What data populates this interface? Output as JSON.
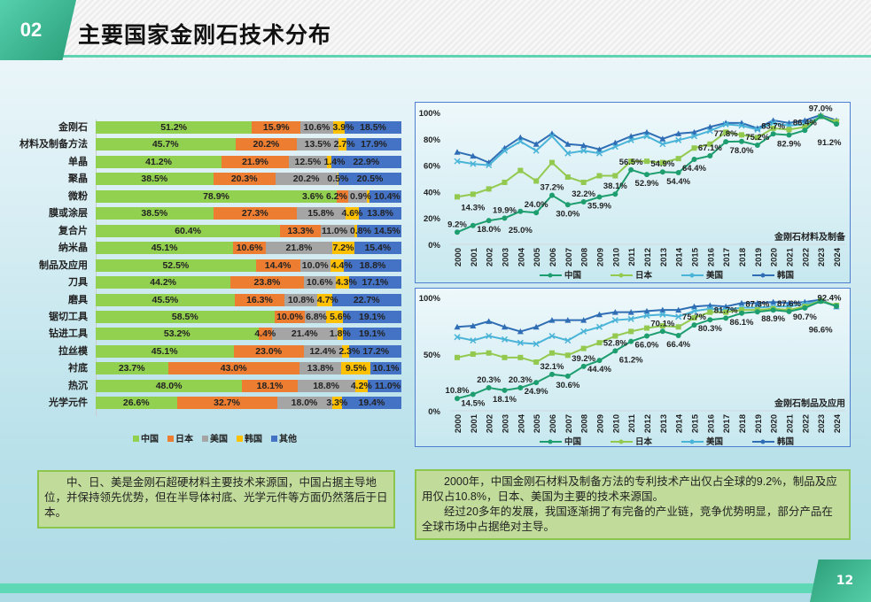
{
  "header": {
    "number": "02",
    "title": "主要国家金刚石技术分布"
  },
  "colors": {
    "中国": "#92d050",
    "日本": "#ed7d31",
    "美国": "#a5a5a5",
    "韩国": "#ffc000",
    "其他": "#4472c4"
  },
  "chart_data": [
    {
      "type": "bar",
      "stacked": true,
      "orientation": "horizontal",
      "legend_position": "bottom",
      "categories": [
        "金刚石",
        "材料及制备方法",
        "单晶",
        "聚晶",
        "微粉",
        "膜或涂层",
        "复合片",
        "纳米晶",
        "制品及应用",
        "刀具",
        "磨具",
        "锯切工具",
        "钻进工具",
        "拉丝模",
        "衬底",
        "热沉",
        "光学元件"
      ],
      "series": [
        {
          "name": "中国",
          "values": [
            51.2,
            45.7,
            41.2,
            38.5,
            78.9,
            38.5,
            60.4,
            45.1,
            52.5,
            44.2,
            45.5,
            58.5,
            53.2,
            45.1,
            23.7,
            48.0,
            26.6
          ]
        },
        {
          "name": "日本",
          "values": [
            15.9,
            20.2,
            21.9,
            20.3,
            3.6,
            27.3,
            13.3,
            10.6,
            14.4,
            23.8,
            16.3,
            10.0,
            4.4,
            23.0,
            43.0,
            18.1,
            32.7
          ]
        },
        {
          "name": "美国",
          "values": [
            10.6,
            13.5,
            12.5,
            20.2,
            6.2,
            15.8,
            11.0,
            21.8,
            10.0,
            10.6,
            10.8,
            6.8,
            21.4,
            12.4,
            13.8,
            18.8,
            18.0
          ]
        },
        {
          "name": "韩国",
          "values": [
            3.9,
            2.7,
            1.4,
            0.5,
            0.9,
            4.6,
            0.8,
            7.2,
            4.4,
            4.3,
            4.7,
            5.6,
            1.8,
            2.3,
            9.5,
            4.2,
            3.3
          ]
        },
        {
          "name": "其他",
          "values": [
            18.5,
            17.9,
            22.9,
            20.5,
            10.4,
            13.8,
            14.5,
            15.4,
            18.8,
            17.1,
            22.7,
            19.1,
            19.1,
            17.2,
            10.1,
            11.0,
            19.4
          ]
        }
      ]
    },
    {
      "type": "line",
      "annotation": "金刚石材料及制备",
      "yticks": [
        "0%",
        "20%",
        "40%",
        "60%",
        "80%",
        "100%"
      ],
      "ylim": [
        0,
        100
      ],
      "legend_position": "bottom",
      "x": [
        "2000",
        "2001",
        "2002",
        "2003",
        "2004",
        "2005",
        "2006",
        "2007",
        "2008",
        "2009",
        "2010",
        "2011",
        "2012",
        "2013",
        "2014",
        "2015",
        "2016",
        "2017",
        "2018",
        "2019",
        "2020",
        "2021",
        "2022",
        "2023",
        "2024"
      ],
      "series": [
        {
          "name": "中国",
          "color": "#1e9e6e",
          "marker": "circle",
          "labels": true,
          "values": [
            9.2,
            14.3,
            18.0,
            19.9,
            25.0,
            24.0,
            37.2,
            30.0,
            32.2,
            35.9,
            38.1,
            56.5,
            52.9,
            54.9,
            54.4,
            64.4,
            67.1,
            77.8,
            78.0,
            75.2,
            83.7,
            82.9,
            86.4,
            97.0,
            91.2
          ]
        },
        {
          "name": "日本",
          "color": "#92c94e",
          "marker": "square",
          "values": [
            36,
            38,
            42,
            47,
            56,
            48,
            62,
            51,
            47,
            52,
            52,
            63,
            63,
            62,
            65,
            73,
            76,
            85,
            83,
            81,
            88,
            87,
            89,
            97,
            93
          ]
        },
        {
          "name": "美国",
          "color": "#4ab3d8",
          "marker": "x",
          "values": [
            63,
            61,
            60,
            71,
            78,
            71,
            82,
            69,
            71,
            69,
            74,
            79,
            82,
            76,
            79,
            82,
            86,
            91,
            90,
            87,
            92,
            90,
            91,
            97,
            93
          ]
        },
        {
          "name": "韩国",
          "color": "#2f6db5",
          "marker": "triangle",
          "values": [
            70,
            67,
            62,
            73,
            81,
            76,
            84,
            76,
            75,
            72,
            77,
            82,
            85,
            80,
            84,
            85,
            89,
            92,
            92,
            88,
            94,
            92,
            94,
            98,
            94
          ]
        }
      ]
    },
    {
      "type": "line",
      "annotation": "金刚石制品及应用",
      "yticks": [
        "0%",
        "50%",
        "100%"
      ],
      "ylim": [
        0,
        100
      ],
      "legend_position": "bottom",
      "x": [
        "2000",
        "2001",
        "2002",
        "2003",
        "2004",
        "2005",
        "2006",
        "2007",
        "2008",
        "2009",
        "2010",
        "2011",
        "2012",
        "2013",
        "2014",
        "2015",
        "2016",
        "2017",
        "2018",
        "2019",
        "2020",
        "2021",
        "2022",
        "2023",
        "2024"
      ],
      "series": [
        {
          "name": "中国",
          "color": "#1e9e6e",
          "marker": "circle",
          "labels": true,
          "values": [
            10.8,
            14.5,
            20.3,
            18.1,
            20.3,
            24.9,
            32.1,
            30.6,
            39.2,
            44.4,
            52.8,
            61.2,
            66.0,
            70.1,
            66.4,
            75.7,
            80.3,
            81.7,
            86.1,
            87.3,
            88.9,
            87.6,
            90.7,
            96.6,
            92.4
          ]
        },
        {
          "name": "日本",
          "color": "#92c94e",
          "marker": "square",
          "values": [
            47,
            50,
            51,
            47,
            47,
            43,
            51,
            49,
            55,
            60,
            66,
            70,
            73,
            75,
            74,
            82,
            87,
            87,
            89,
            89,
            90,
            89,
            92,
            97,
            93
          ]
        },
        {
          "name": "美国",
          "color": "#4ab3d8",
          "marker": "x",
          "values": [
            65,
            62,
            66,
            63,
            60,
            59,
            66,
            62,
            70,
            74,
            80,
            81,
            84,
            85,
            83,
            88,
            90,
            89,
            91,
            91,
            92,
            92,
            94,
            97,
            92
          ]
        },
        {
          "name": "韩国",
          "color": "#2f6db5",
          "marker": "triangle",
          "values": [
            74,
            75,
            79,
            74,
            70,
            74,
            80,
            80,
            80,
            85,
            87,
            87,
            88,
            89,
            89,
            92,
            93,
            92,
            95,
            95,
            96,
            95,
            96,
            98,
            92
          ]
        }
      ]
    }
  ],
  "left_box": {
    "text": "中、日、美是金刚石超硬材料主要技术来源国，中国占据主导地位，并保持领先优势，但在半导体衬底、光学元件等方面仍然落后于日本。"
  },
  "right_box": {
    "p1": "2000年，中国金刚石材料及制备方法的专利技术产出仅占全球的9.2%，制品及应用仅占10.8%，日本、美国为主要的技术来源国。",
    "p2": "经过20多年的发展，我国逐渐拥了有完备的产业链，竞争优势明显，部分产品在全球市场中占据绝对主导。"
  },
  "footer": {
    "page_number": "12"
  }
}
